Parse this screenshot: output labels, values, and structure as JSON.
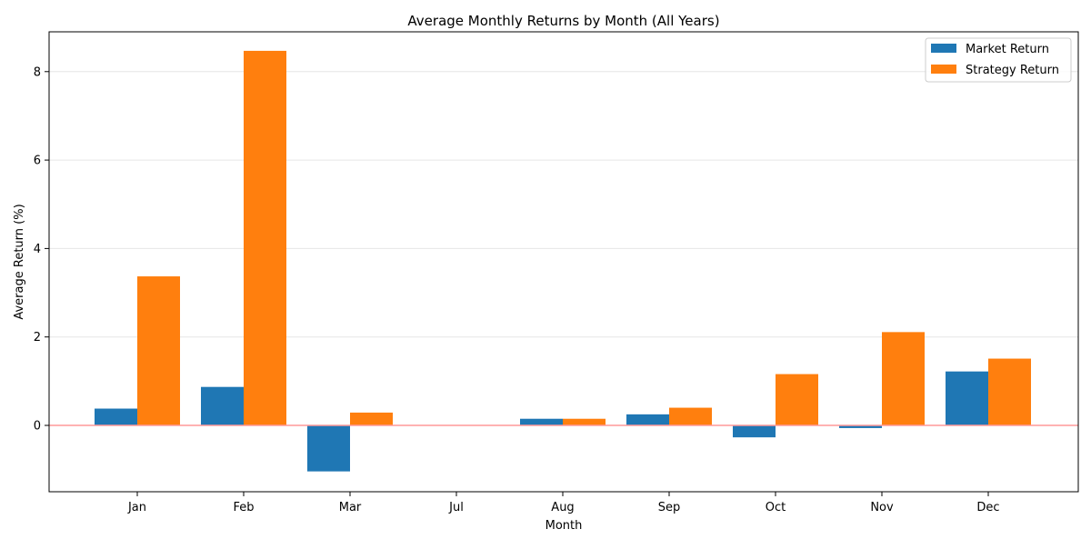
{
  "chart_data": {
    "type": "bar",
    "title": "Average Monthly Returns by Month (All Years)",
    "xlabel": "Month",
    "ylabel": "Average Return (%)",
    "categories": [
      "Jan",
      "Feb",
      "Mar",
      "Jul",
      "Aug",
      "Sep",
      "Oct",
      "Nov",
      "Dec"
    ],
    "series": [
      {
        "name": "Market Return",
        "color": "#1f77b4",
        "values": [
          0.38,
          0.87,
          -1.04,
          0.0,
          0.15,
          0.25,
          -0.27,
          -0.06,
          1.22
        ]
      },
      {
        "name": "Strategy Return",
        "color": "#ff7f0e",
        "values": [
          3.37,
          8.47,
          0.29,
          0.0,
          0.15,
          0.4,
          1.16,
          2.11,
          1.51
        ]
      }
    ],
    "ylim": [
      -1.5,
      8.9
    ],
    "yticks": [
      0,
      2,
      4,
      6,
      8
    ],
    "grid": "y",
    "zero_line_color": "#ff9999",
    "legend": "top-right"
  }
}
